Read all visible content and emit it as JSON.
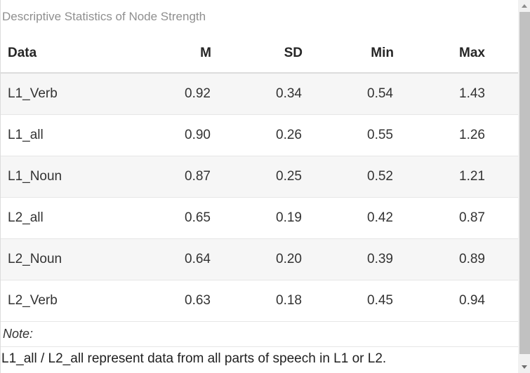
{
  "caption": "Descriptive Statistics of Node Strength",
  "table": {
    "columns": [
      "Data",
      "M",
      "SD",
      "Min",
      "Max"
    ],
    "rows": [
      {
        "data": "L1_Verb",
        "m": "0.92",
        "sd": "0.34",
        "min": "0.54",
        "max": "1.43"
      },
      {
        "data": "L1_all",
        "m": "0.90",
        "sd": "0.26",
        "min": "0.55",
        "max": "1.26"
      },
      {
        "data": "L1_Noun",
        "m": "0.87",
        "sd": "0.25",
        "min": "0.52",
        "max": "1.21"
      },
      {
        "data": "L2_all",
        "m": "0.65",
        "sd": "0.19",
        "min": "0.42",
        "max": "0.87"
      },
      {
        "data": "L2_Noun",
        "m": "0.64",
        "sd": "0.20",
        "min": "0.39",
        "max": "0.89"
      },
      {
        "data": "L2_Verb",
        "m": "0.63",
        "sd": "0.18",
        "min": "0.45",
        "max": "0.94"
      }
    ],
    "note_label": "Note:",
    "note_text": "L1_all / L2_all represent data from all parts of speech in L1 or L2."
  },
  "chart_data": {
    "type": "table",
    "title": "Descriptive Statistics of Node Strength",
    "columns": [
      "Data",
      "M",
      "SD",
      "Min",
      "Max"
    ],
    "rows": [
      [
        "L1_Verb",
        0.92,
        0.34,
        0.54,
        1.43
      ],
      [
        "L1_all",
        0.9,
        0.26,
        0.55,
        1.26
      ],
      [
        "L1_Noun",
        0.87,
        0.25,
        0.52,
        1.21
      ],
      [
        "L2_all",
        0.65,
        0.19,
        0.42,
        0.87
      ],
      [
        "L2_Noun",
        0.64,
        0.2,
        0.39,
        0.89
      ],
      [
        "L2_Verb",
        0.63,
        0.18,
        0.45,
        0.94
      ]
    ],
    "note": "L1_all / L2_all represent data from all parts of speech in L1 or L2."
  },
  "colors": {
    "caption_text": "#8f8f8f",
    "header_text": "#262626",
    "body_text": "#333333",
    "row_stripe": "#f6f6f6",
    "row_border": "#e6e6e6",
    "scrollbar_track": "#f1f1f1",
    "scrollbar_thumb": "#c1c1c1"
  }
}
